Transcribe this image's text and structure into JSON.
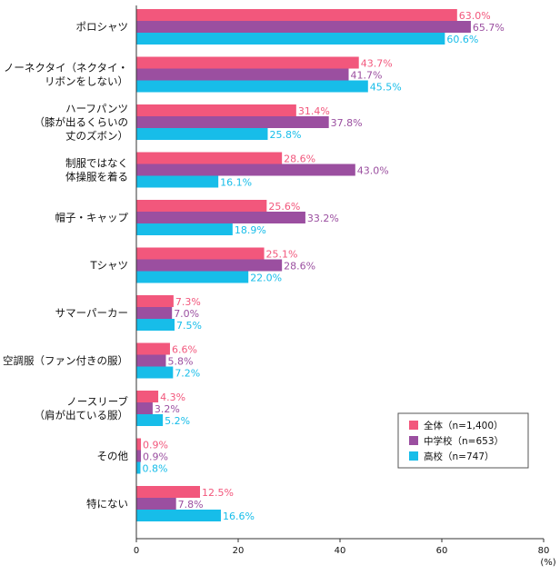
{
  "chart_data": {
    "type": "bar",
    "orientation": "horizontal",
    "categories": [
      [
        "ポロシャツ"
      ],
      [
        "ノーネクタイ（ネクタイ・",
        "リボンをしない）"
      ],
      [
        "ハーフパンツ",
        "（膝が出るくらいの",
        "丈のズボン）"
      ],
      [
        "制服ではなく",
        "体操服を着る"
      ],
      [
        "帽子・キャップ"
      ],
      [
        "Tシャツ"
      ],
      [
        "サマーパーカー"
      ],
      [
        "空調服（ファン付きの服）"
      ],
      [
        "ノースリーブ",
        "（肩が出ている服）"
      ],
      [
        "その他"
      ],
      [
        "特にない"
      ]
    ],
    "series": [
      {
        "name": "全体（n=1,400）",
        "color": "#f2577c",
        "label_color": "#f2577c",
        "values": [
          63.0,
          43.7,
          31.4,
          28.6,
          25.6,
          25.1,
          7.3,
          6.6,
          4.3,
          0.9,
          12.5
        ]
      },
      {
        "name": "中学校（n=653）",
        "color": "#9b4fa0",
        "label_color": "#9b4fa0",
        "values": [
          65.7,
          41.7,
          37.8,
          43.0,
          33.2,
          28.6,
          7.0,
          5.8,
          3.2,
          0.9,
          7.8
        ]
      },
      {
        "name": "高校（n=747）",
        "color": "#17bde9",
        "label_color": "#17bde9",
        "values": [
          60.6,
          45.5,
          25.8,
          16.1,
          18.9,
          22.0,
          7.5,
          7.2,
          5.2,
          0.8,
          16.6
        ]
      }
    ],
    "xlim": [
      0,
      80
    ],
    "xticks": [
      "0",
      "20",
      "40",
      "60",
      "80"
    ],
    "xunit": "(%)",
    "legend_position": "bottom-right",
    "grid": false
  }
}
